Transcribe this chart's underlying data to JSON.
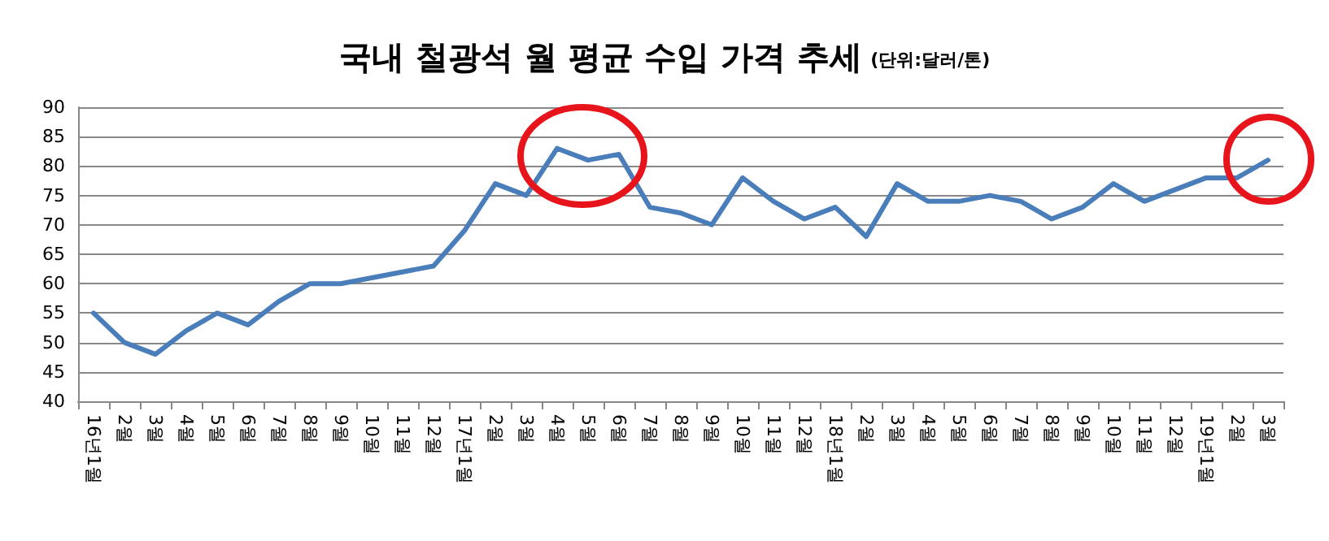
{
  "chart_data": {
    "type": "line",
    "title": "국내 철광석 월 평균 수입 가격 추세",
    "subtitle": "(단위:달러/톤)",
    "categories": [
      "16년1월",
      "2월",
      "3월",
      "4월",
      "5월",
      "6월",
      "7월",
      "8월",
      "9월",
      "10월",
      "11월",
      "12월",
      "17년1월",
      "2월",
      "3월",
      "4월",
      "5월",
      "6월",
      "7월",
      "8월",
      "9월",
      "10월",
      "11월",
      "12월",
      "18년1월",
      "2월",
      "3월",
      "4월",
      "5월",
      "6월",
      "7월",
      "8월",
      "9월",
      "10월",
      "11월",
      "12월",
      "19년1월",
      "2월",
      "3월"
    ],
    "series": [
      {
        "color": "#4a7ebb",
        "values": [
          55,
          50,
          48,
          52,
          55,
          53,
          57,
          60,
          60,
          61,
          62,
          63,
          69,
          77,
          75,
          83,
          81,
          82,
          73,
          72,
          70,
          78,
          74,
          71,
          73,
          68,
          77,
          74,
          74,
          75,
          74,
          71,
          73,
          77,
          74,
          76,
          78,
          78,
          81
        ]
      }
    ],
    "ylim": [
      40,
      90
    ],
    "yticks": [
      40,
      45,
      50,
      55,
      60,
      65,
      70,
      75,
      80,
      85,
      90
    ],
    "grid": "y",
    "marker": "none",
    "line_style": "solid"
  }
}
